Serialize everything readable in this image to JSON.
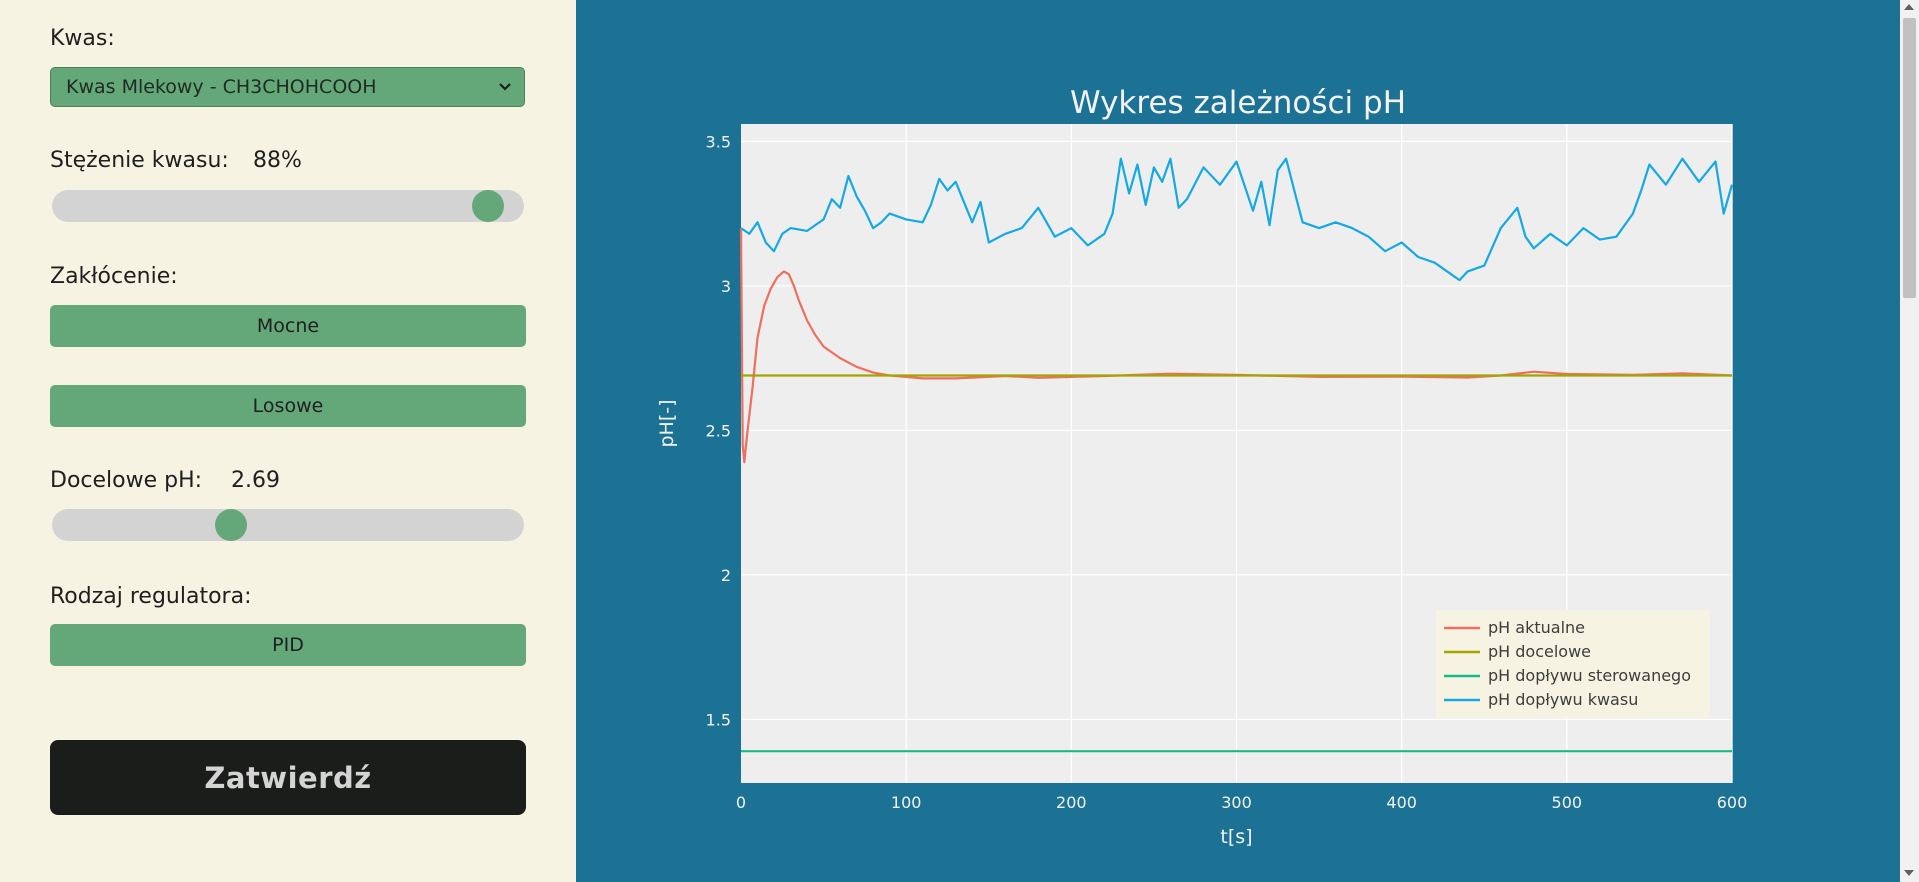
{
  "sidebar": {
    "acid_label": "Kwas:",
    "acid_selected": "Kwas Mlekowy - CH3CHOHCOOH",
    "concentration_label": "Stężenie kwasu:",
    "concentration_value": "88%",
    "concentration_fraction": 0.955,
    "disturbance_label": "Zakłócenie:",
    "disturbance_buttons": [
      "Mocne",
      "Losowe"
    ],
    "target_ph_label": "Docelowe pH:",
    "target_ph_value": "2.69",
    "target_ph_fraction": 0.37,
    "controller_label": "Rodzaj regulatora:",
    "controller_button": "PID",
    "submit_label": "Zatwierdź"
  },
  "colors": {
    "accent": "#64a87a",
    "sidebar_bg": "#f7f3e3",
    "main_bg": "#1c7294",
    "plot_bg": "#eeeeee",
    "submit_bg": "#1b1d1b"
  },
  "chart_data": {
    "type": "line",
    "title": "Wykres zależności pH",
    "xlabel": "t[s]",
    "ylabel": "pH[-]",
    "xlim": [
      0,
      600
    ],
    "ylim": [
      1.28,
      3.56
    ],
    "x_ticks": [
      0,
      100,
      200,
      300,
      400,
      500,
      600
    ],
    "y_ticks": [
      1.5,
      2,
      2.5,
      3,
      3.5
    ],
    "y_tick_labels": [
      "1.5",
      "2",
      "2.5",
      "3",
      "3.5"
    ],
    "grid": true,
    "legend_position": "bottom-right",
    "series": [
      {
        "name": "pH aktualne",
        "color": "#ef6f5e",
        "x": [
          0,
          1,
          2,
          4,
          7,
          10,
          14,
          18,
          22,
          26,
          29,
          32,
          35,
          40,
          45,
          50,
          60,
          70,
          80,
          90,
          100,
          110,
          130,
          160,
          180,
          220,
          260,
          300,
          350,
          400,
          440,
          460,
          480,
          500,
          540,
          570,
          600
        ],
        "y": [
          3.2,
          2.45,
          2.39,
          2.5,
          2.65,
          2.82,
          2.93,
          2.99,
          3.03,
          3.05,
          3.04,
          3.0,
          2.95,
          2.88,
          2.83,
          2.79,
          2.75,
          2.72,
          2.7,
          2.69,
          2.685,
          2.68,
          2.68,
          2.688,
          2.682,
          2.688,
          2.696,
          2.692,
          2.685,
          2.686,
          2.683,
          2.69,
          2.703,
          2.695,
          2.692,
          2.697,
          2.69
        ]
      },
      {
        "name": "pH docelowe",
        "color": "#a4a400",
        "x": [
          0,
          600
        ],
        "y": [
          2.69,
          2.69
        ]
      },
      {
        "name": "pH dopływu sterowanego",
        "color": "#1ab988",
        "x": [
          0,
          600
        ],
        "y": [
          1.39,
          1.39
        ]
      },
      {
        "name": "pH dopływu kwasu",
        "color": "#14a9e4",
        "x": [
          0,
          5,
          10,
          15,
          20,
          25,
          30,
          40,
          50,
          55,
          60,
          65,
          70,
          75,
          80,
          85,
          90,
          100,
          110,
          115,
          120,
          125,
          130,
          140,
          145,
          150,
          160,
          170,
          180,
          190,
          200,
          210,
          220,
          225,
          230,
          235,
          240,
          245,
          250,
          255,
          260,
          265,
          270,
          280,
          290,
          300,
          310,
          315,
          320,
          325,
          330,
          335,
          340,
          350,
          360,
          370,
          380,
          390,
          400,
          410,
          420,
          430,
          435,
          440,
          450,
          460,
          470,
          475,
          480,
          490,
          500,
          510,
          520,
          530,
          540,
          545,
          550,
          560,
          570,
          580,
          590,
          595,
          600
        ],
        "y": [
          3.2,
          3.18,
          3.22,
          3.15,
          3.12,
          3.18,
          3.2,
          3.19,
          3.23,
          3.3,
          3.27,
          3.38,
          3.31,
          3.26,
          3.2,
          3.22,
          3.25,
          3.23,
          3.22,
          3.28,
          3.37,
          3.33,
          3.36,
          3.22,
          3.29,
          3.15,
          3.18,
          3.2,
          3.27,
          3.17,
          3.2,
          3.14,
          3.18,
          3.25,
          3.44,
          3.32,
          3.42,
          3.28,
          3.41,
          3.36,
          3.44,
          3.27,
          3.3,
          3.41,
          3.35,
          3.43,
          3.26,
          3.36,
          3.21,
          3.4,
          3.44,
          3.33,
          3.22,
          3.2,
          3.22,
          3.2,
          3.17,
          3.12,
          3.15,
          3.1,
          3.08,
          3.04,
          3.02,
          3.05,
          3.07,
          3.2,
          3.27,
          3.17,
          3.13,
          3.18,
          3.14,
          3.2,
          3.16,
          3.17,
          3.25,
          3.33,
          3.42,
          3.35,
          3.44,
          3.36,
          3.43,
          3.25,
          3.35
        ]
      }
    ]
  }
}
